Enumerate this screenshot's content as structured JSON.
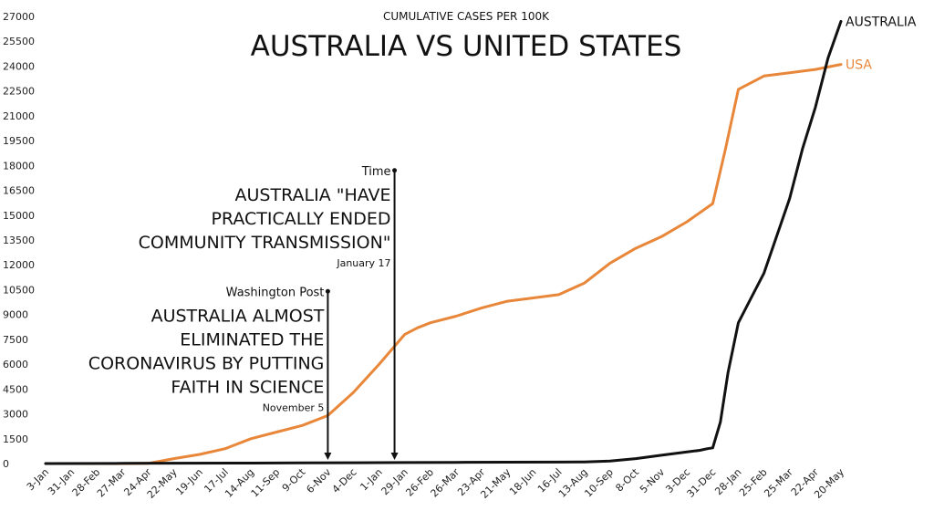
{
  "chart_data": {
    "type": "line",
    "subtitle": "CUMULATIVE CASES PER 100K",
    "title": "AUSTRALIA VS UNITED STATES",
    "x_ticks": [
      "3-Jan",
      "31-Jan",
      "28-Feb",
      "27-Mar",
      "24-Apr",
      "22-May",
      "19-Jun",
      "17-Jul",
      "14-Aug",
      "11-Sep",
      "9-Oct",
      "6-Nov",
      "4-Dec",
      "1-Jan",
      "29-Jan",
      "26-Feb",
      "26-Mar",
      "23-Apr",
      "21-May",
      "18-Jun",
      "16-Jul",
      "13-Aug",
      "10-Sep",
      "8-Oct",
      "5-Nov",
      "3-Dec",
      "31-Dec",
      "28-Jan",
      "25-Feb",
      "25-Mar",
      "22-Apr",
      "20-May"
    ],
    "y_ticks": [
      0,
      1500,
      3000,
      4500,
      6000,
      7500,
      9000,
      10500,
      12000,
      13500,
      15000,
      16500,
      18000,
      19500,
      21000,
      22500,
      24000,
      25500,
      27000
    ],
    "ylim": [
      0,
      27000
    ],
    "grid": false,
    "legend": "end-of-line labels",
    "series": [
      {
        "name": "USA",
        "color": "#e8873a",
        "x": [
          0,
          2,
          3,
          4,
          5,
          6,
          7,
          8,
          9,
          10,
          11,
          12,
          13,
          14,
          14.5,
          15,
          16,
          17,
          18,
          19,
          20,
          21,
          22,
          23,
          24,
          25,
          26,
          26.5,
          27,
          28,
          29,
          30,
          31
        ],
        "y": [
          0,
          0,
          0,
          10,
          300,
          550,
          900,
          1500,
          1900,
          2300,
          2900,
          4300,
          6000,
          7800,
          8200,
          8500,
          8900,
          9400,
          9800,
          10000,
          10200,
          10900,
          12100,
          13000,
          13700,
          14600,
          15700,
          19000,
          22600,
          23400,
          23600,
          23800,
          24100
        ]
      },
      {
        "name": "AUSTRALIA",
        "color": "#111111",
        "x": [
          0,
          3,
          5,
          8,
          10,
          12,
          14,
          16,
          18,
          20,
          21,
          22,
          23,
          24,
          25,
          25.5,
          25.8,
          26,
          26.3,
          26.6,
          27,
          27.5,
          28,
          29,
          29.5,
          30,
          30.5,
          31
        ],
        "y": [
          0,
          10,
          20,
          30,
          40,
          50,
          60,
          70,
          80,
          90,
          100,
          150,
          300,
          500,
          700,
          800,
          900,
          950,
          2500,
          5500,
          8500,
          10000,
          11500,
          16000,
          19000,
          21500,
          24500,
          26700
        ]
      }
    ],
    "annotations": [
      {
        "source": "Washington Post",
        "lines": [
          "AUSTRALIA ALMOST",
          "ELIMINATED THE",
          "CORONAVIRUS BY PUTTING",
          "FAITH IN SCIENCE"
        ],
        "date": "November 5",
        "x": 11,
        "y_top": 10400
      },
      {
        "source": "Time",
        "lines": [
          "AUSTRALIA \"HAVE",
          "PRACTICALLY ENDED",
          "COMMUNITY TRANSMISSION\""
        ],
        "date": "January 17",
        "x": 13.6,
        "y_top": 17700
      }
    ]
  }
}
